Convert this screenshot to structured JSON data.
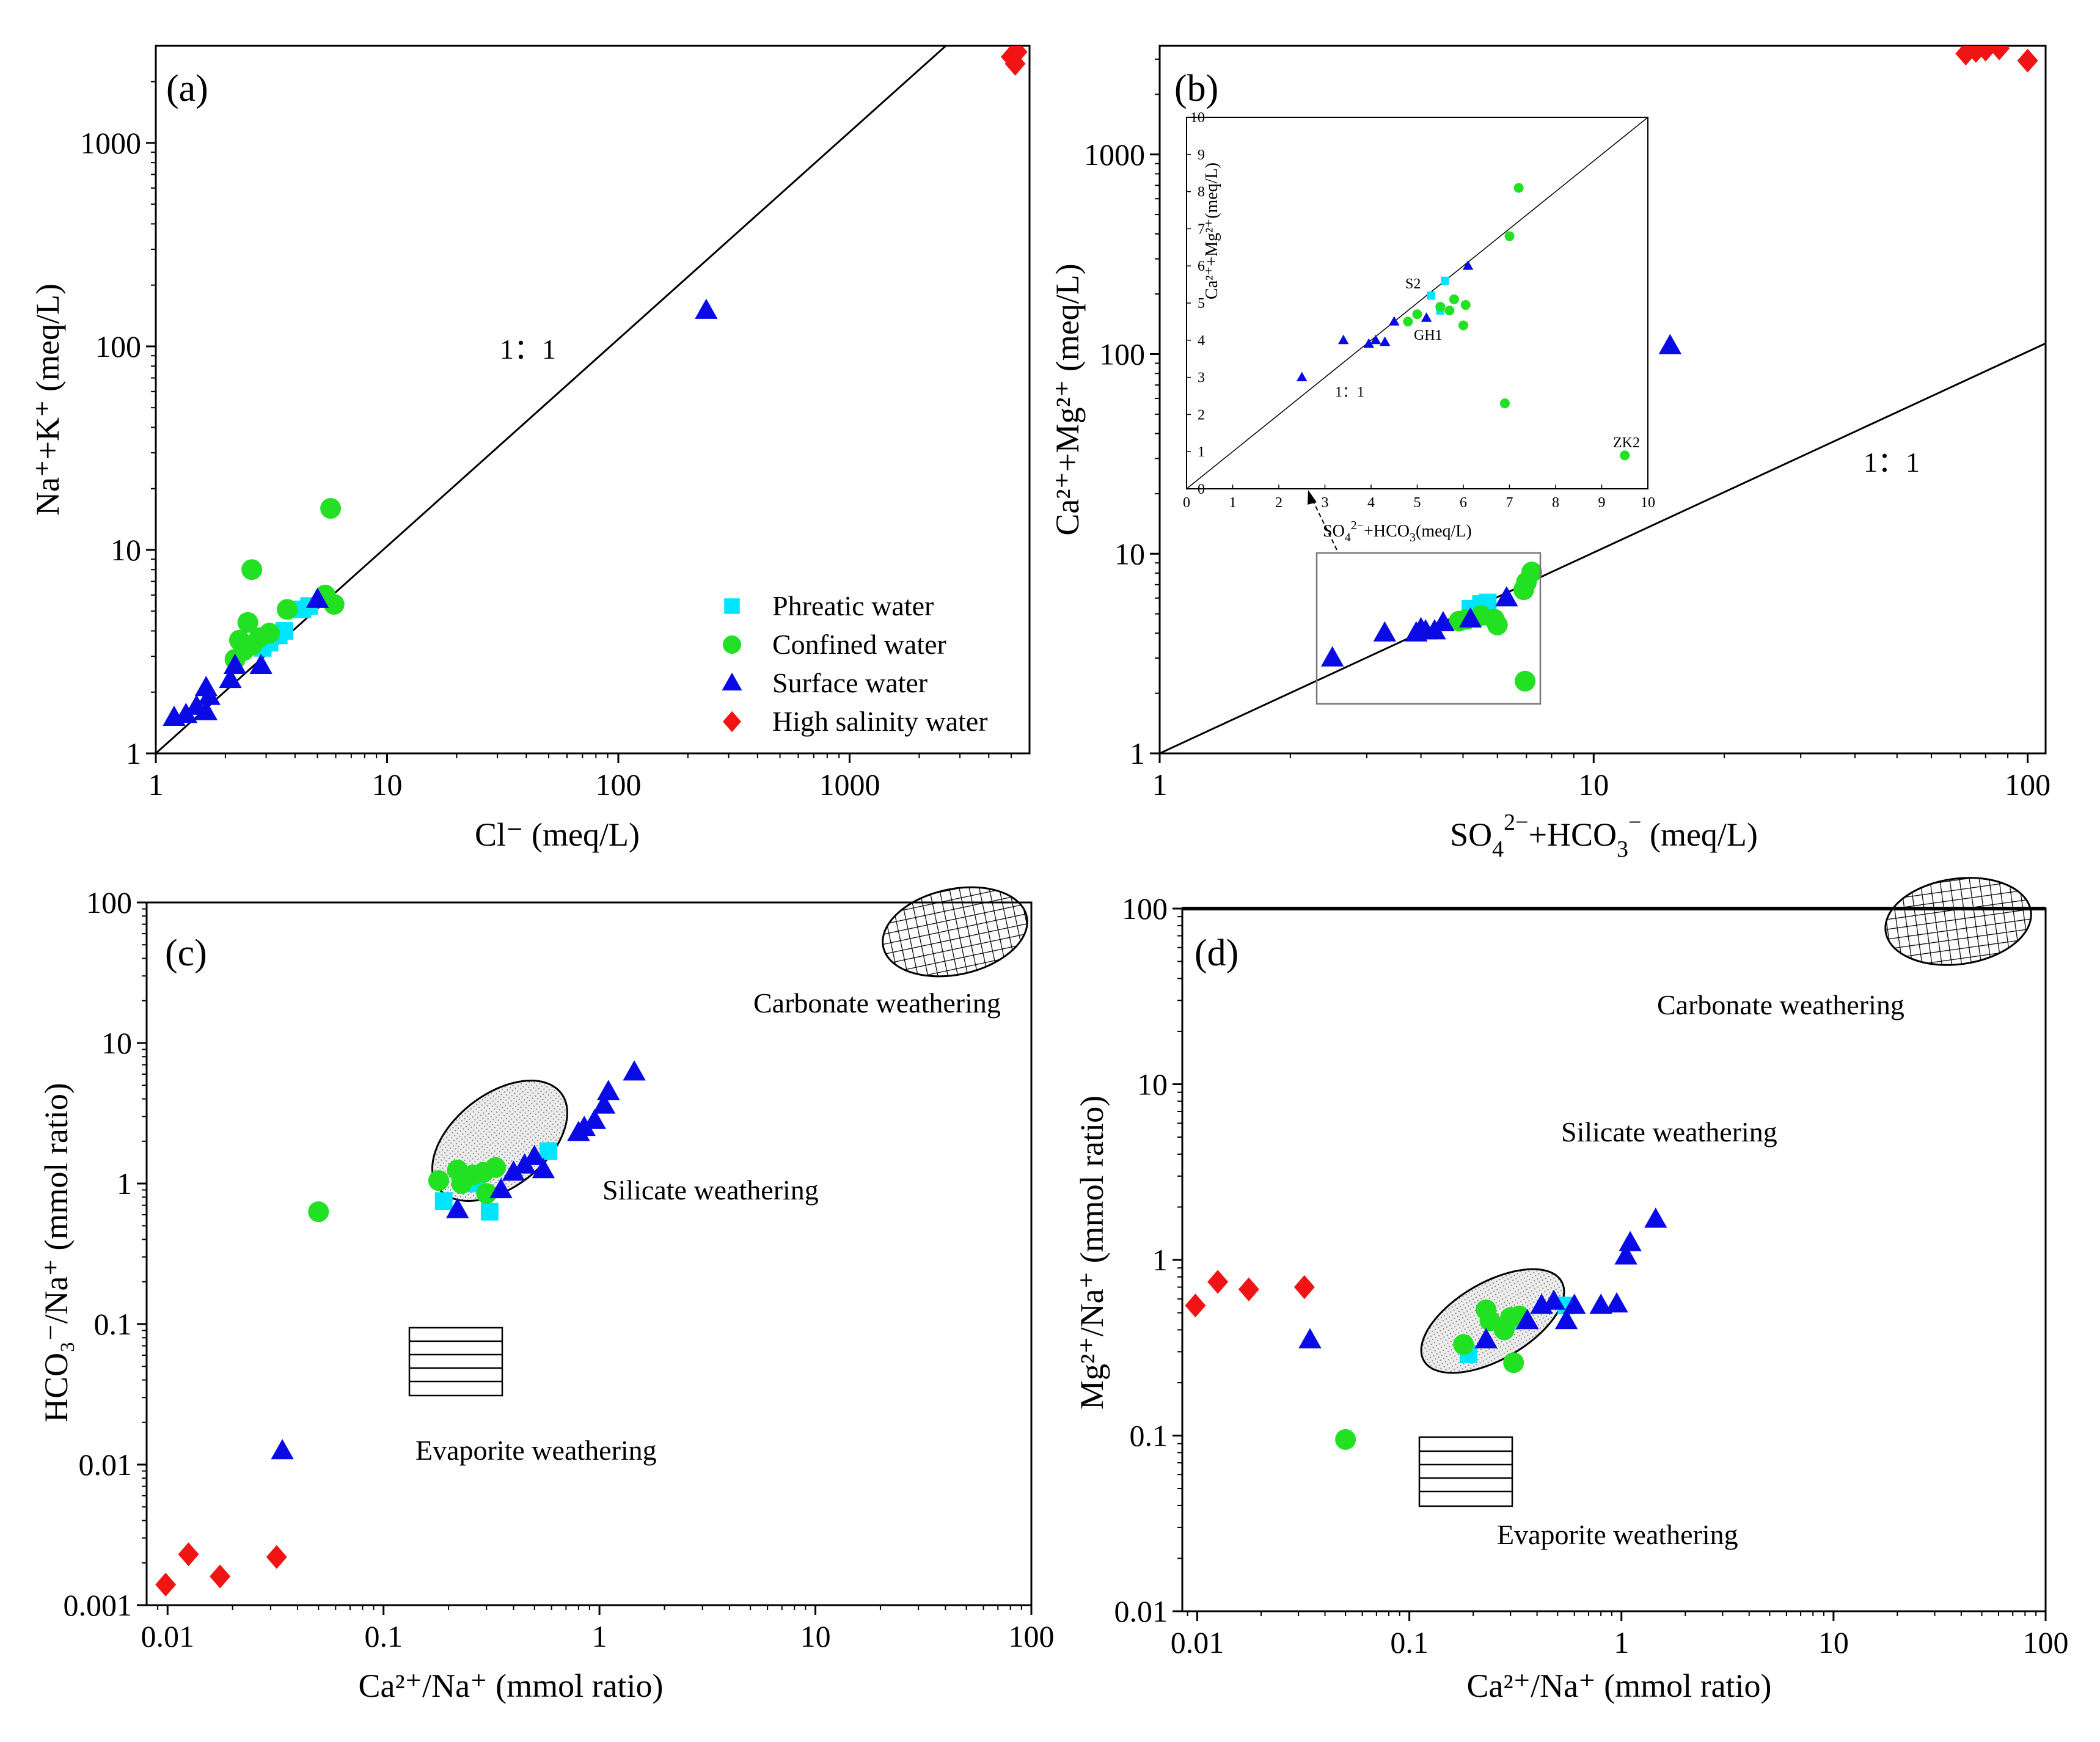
{
  "colors": {
    "phreatic": "#00e5ff",
    "confined": "#22e022",
    "surface": "#0a0ae6",
    "high_salinity": "#f01414"
  },
  "chart_data": [
    {
      "id": "a",
      "type": "scatter",
      "panel_label": "(a)",
      "title": "",
      "xlabel": "Cl⁻ (meq/L)",
      "ylabel": "Na⁺+K⁺ (meq/L)",
      "xscale": "log",
      "yscale": "log",
      "xlim": [
        1,
        6000
      ],
      "ylim": [
        1,
        3000
      ],
      "xticks": [
        1,
        10,
        100,
        1000
      ],
      "xtick_labels": [
        "1",
        "10",
        "100",
        "1000"
      ],
      "yticks": [
        1,
        10,
        100,
        1000
      ],
      "ytick_labels": [
        "1",
        "10",
        "100",
        "1000"
      ],
      "reference_line": {
        "label": "1：1",
        "slope": 1
      },
      "legend": {
        "position": "bottom-right",
        "entries": [
          {
            "key": "phreatic",
            "label": "Phreatic water",
            "marker": "square"
          },
          {
            "key": "confined",
            "label": "Confined water",
            "marker": "circle"
          },
          {
            "key": "surface",
            "label": "Surface water",
            "marker": "triangle"
          },
          {
            "key": "high_salinity",
            "label": "High salinity water",
            "marker": "diamond"
          }
        ]
      },
      "series": [
        {
          "key": "phreatic",
          "name": "Phreatic water",
          "marker": "square",
          "points": [
            [
              3.4,
              3.8
            ],
            [
              3.6,
              4.0
            ],
            [
              4.3,
              5.1
            ],
            [
              4.6,
              5.3
            ],
            [
              2.9,
              3.3
            ],
            [
              3.1,
              3.5
            ]
          ]
        },
        {
          "key": "confined",
          "name": "Confined water",
          "marker": "circle",
          "points": [
            [
              2.2,
              2.9
            ],
            [
              2.4,
              3.2
            ],
            [
              2.6,
              3.4
            ],
            [
              2.8,
              3.7
            ],
            [
              3.1,
              3.9
            ],
            [
              2.5,
              4.4
            ],
            [
              2.6,
              8.0
            ],
            [
              3.7,
              5.1
            ],
            [
              5.4,
              6.0
            ],
            [
              5.9,
              5.4
            ],
            [
              5.7,
              16.0
            ],
            [
              2.3,
              3.6
            ]
          ]
        },
        {
          "key": "surface",
          "name": "Surface water",
          "marker": "triangle",
          "points": [
            [
              1.2,
              1.5
            ],
            [
              1.35,
              1.55
            ],
            [
              1.5,
              1.7
            ],
            [
              1.65,
              1.6
            ],
            [
              1.7,
              1.9
            ],
            [
              1.65,
              2.1
            ],
            [
              2.1,
              2.3
            ],
            [
              2.2,
              2.7
            ],
            [
              2.85,
              2.7
            ],
            [
              5.0,
              5.7
            ],
            [
              240,
              150
            ]
          ]
        },
        {
          "key": "high_salinity",
          "name": "High salinity water",
          "marker": "diamond",
          "points": [
            [
              5100,
              2700
            ],
            [
              5200,
              2450
            ],
            [
              5300,
              2800
            ],
            [
              5000,
              2650
            ]
          ]
        }
      ]
    },
    {
      "id": "b",
      "type": "scatter",
      "panel_label": "(b)",
      "title": "",
      "xlabel": "SO₄²⁻+HCO₃⁻ (meq/L)",
      "ylabel": "Ca²⁺+Mg²⁺ (meq/L)",
      "xscale": "log",
      "yscale": "log",
      "xlim": [
        1,
        110
      ],
      "ylim": [
        1,
        3500
      ],
      "xticks": [
        1,
        10,
        100
      ],
      "xtick_labels": [
        "1",
        "10",
        "100"
      ],
      "yticks": [
        1,
        10,
        100,
        1000
      ],
      "ytick_labels": [
        "1",
        "10",
        "100",
        "1000"
      ],
      "reference_line": {
        "label": "1：1",
        "slope": 1
      },
      "series": [
        {
          "key": "phreatic",
          "name": "Phreatic water",
          "marker": "square",
          "points": [
            [
              5.3,
              5.2
            ],
            [
              5.5,
              5.6
            ],
            [
              5.7,
              5.7
            ],
            [
              5.2,
              5.3
            ]
          ]
        },
        {
          "key": "confined",
          "name": "Confined water",
          "marker": "circle",
          "points": [
            [
              4.9,
              4.6
            ],
            [
              5.1,
              4.7
            ],
            [
              5.5,
              4.9
            ],
            [
              5.9,
              4.7
            ],
            [
              6.0,
              4.4
            ],
            [
              7.0,
              7.2
            ],
            [
              7.2,
              8.1
            ],
            [
              6.9,
              6.6
            ],
            [
              6.95,
              2.3
            ]
          ]
        },
        {
          "key": "surface",
          "name": "Surface water",
          "marker": "triangle",
          "points": [
            [
              2.5,
              3.0
            ],
            [
              3.3,
              4.0
            ],
            [
              3.9,
              4.0
            ],
            [
              4.1,
              4.1
            ],
            [
              4.3,
              4.1
            ],
            [
              4.0,
              4.2
            ],
            [
              4.5,
              4.5
            ],
            [
              5.2,
              4.7
            ],
            [
              6.3,
              6.0
            ],
            [
              15,
              110
            ]
          ]
        },
        {
          "key": "high_salinity",
          "name": "High salinity water",
          "marker": "diamond",
          "points": [
            [
              72,
              3200
            ],
            [
              76,
              3300
            ],
            [
              80,
              3350
            ],
            [
              86,
              3400
            ],
            [
              100,
              2950
            ]
          ]
        }
      ],
      "inset": {
        "type": "scatter",
        "xlabel": "SO₄²⁻+HCO₃⁻(meq/L)",
        "ylabel": "Ca²⁺+Mg²⁺(meq/L)",
        "xlim": [
          0,
          10
        ],
        "ylim": [
          0,
          10
        ],
        "xticks": [
          0,
          1,
          2,
          3,
          4,
          5,
          6,
          7,
          8,
          9,
          10
        ],
        "xtick_labels": [
          "0",
          "1",
          "2",
          "3",
          "4",
          "5",
          "6",
          "7",
          "8",
          "9",
          "10"
        ],
        "yticks": [
          0,
          1,
          2,
          3,
          4,
          5,
          6,
          7,
          8,
          9,
          10
        ],
        "ytick_labels": [
          "0",
          "1",
          "2",
          "3",
          "4",
          "5",
          "6",
          "7",
          "8",
          "9",
          "10"
        ],
        "reference_label": "1：1",
        "annotations": [
          "S2",
          "GH1",
          "ZK2"
        ],
        "series": [
          {
            "key": "phreatic",
            "marker": "square",
            "points": [
              [
                5.3,
                5.2
              ],
              [
                5.6,
                5.6
              ],
              [
                5.5,
                4.8
              ]
            ]
          },
          {
            "key": "confined",
            "marker": "circle",
            "points": [
              [
                4.8,
                4.5
              ],
              [
                5.0,
                4.7
              ],
              [
                5.5,
                4.9
              ],
              [
                5.8,
                5.1
              ],
              [
                6.0,
                4.4
              ],
              [
                6.05,
                4.95
              ],
              [
                7.0,
                6.8
              ],
              [
                7.2,
                8.1
              ],
              [
                6.9,
                2.3
              ],
              [
                9.5,
                0.9
              ],
              [
                5.7,
                4.8
              ]
            ]
          },
          {
            "key": "surface",
            "marker": "triangle",
            "points": [
              [
                2.5,
                3.0
              ],
              [
                3.4,
                4.0
              ],
              [
                3.95,
                3.9
              ],
              [
                4.1,
                4.0
              ],
              [
                4.3,
                3.95
              ],
              [
                4.5,
                4.5
              ],
              [
                5.2,
                4.6
              ],
              [
                6.1,
                6.0
              ]
            ]
          }
        ]
      }
    },
    {
      "id": "c",
      "type": "scatter",
      "panel_label": "(c)",
      "title": "",
      "xlabel": "Ca²⁺/Na⁺ (mmol ratio)",
      "ylabel": "HCO₃⁻/Na⁺ (mmol ratio)",
      "xscale": "log",
      "yscale": "log",
      "xlim": [
        0.008,
        100
      ],
      "ylim": [
        0.001,
        100
      ],
      "xticks": [
        0.01,
        0.1,
        1,
        10,
        100
      ],
      "xtick_labels": [
        "0.01",
        "0.1",
        "1",
        "10",
        "100"
      ],
      "yticks": [
        0.001,
        0.01,
        0.1,
        1,
        10,
        100
      ],
      "ytick_labels": [
        "0.001",
        "0.01",
        "0.1",
        "1",
        "10",
        "100"
      ],
      "regions": [
        "Carbonate weathering",
        "Silicate weathering",
        "Evaporite weathering"
      ],
      "series": [
        {
          "key": "phreatic",
          "name": "Phreatic water",
          "marker": "square",
          "points": [
            [
              0.19,
              0.75
            ],
            [
              0.31,
              0.63
            ],
            [
              0.58,
              1.7
            ],
            [
              0.27,
              1.0
            ]
          ]
        },
        {
          "key": "confined",
          "name": "Confined water",
          "marker": "circle",
          "points": [
            [
              0.05,
              0.63
            ],
            [
              0.18,
              1.05
            ],
            [
              0.22,
              1.25
            ],
            [
              0.26,
              1.15
            ],
            [
              0.29,
              1.2
            ],
            [
              0.33,
              1.3
            ],
            [
              0.3,
              0.85
            ],
            [
              0.23,
              1.0
            ]
          ]
        },
        {
          "key": "surface",
          "name": "Surface water",
          "marker": "triangle",
          "points": [
            [
              0.034,
              0.0125
            ],
            [
              0.22,
              0.65
            ],
            [
              0.35,
              0.9
            ],
            [
              0.4,
              1.2
            ],
            [
              0.45,
              1.35
            ],
            [
              0.5,
              1.55
            ],
            [
              0.55,
              1.25
            ],
            [
              0.8,
              2.3
            ],
            [
              0.85,
              2.5
            ],
            [
              0.95,
              2.8
            ],
            [
              1.05,
              3.6
            ],
            [
              1.1,
              4.5
            ],
            [
              1.45,
              6.2
            ]
          ]
        },
        {
          "key": "high_salinity",
          "name": "High salinity water",
          "marker": "diamond",
          "points": [
            [
              0.0098,
              0.0014
            ],
            [
              0.0125,
              0.0023
            ],
            [
              0.0175,
              0.0016
            ],
            [
              0.032,
              0.0022
            ]
          ]
        }
      ]
    },
    {
      "id": "d",
      "type": "scatter",
      "panel_label": "(d)",
      "title": "",
      "xlabel": "Ca²⁺/Na⁺ (mmol ratio)",
      "ylabel": "Mg²⁺/Na⁺ (mmol ratio)",
      "xscale": "log",
      "yscale": "log",
      "xlim": [
        0.0085,
        100
      ],
      "ylim": [
        0.01,
        100
      ],
      "xticks": [
        0.01,
        0.1,
        1,
        10,
        100
      ],
      "xtick_labels": [
        "0.01",
        "0.1",
        "1",
        "10",
        "100"
      ],
      "yticks": [
        0.01,
        0.1,
        1,
        10,
        100
      ],
      "ytick_labels": [
        "0.01",
        "0.1",
        "1",
        "10",
        "100"
      ],
      "regions": [
        "Carbonate weathering",
        "Silicate weathering",
        "Evaporite weathering"
      ],
      "series": [
        {
          "key": "phreatic",
          "name": "Phreatic water",
          "marker": "square",
          "points": [
            [
              0.19,
              0.29
            ],
            [
              0.55,
              0.55
            ],
            [
              0.3,
              0.45
            ]
          ]
        },
        {
          "key": "confined",
          "name": "Confined water",
          "marker": "circle",
          "points": [
            [
              0.05,
              0.095
            ],
            [
              0.18,
              0.33
            ],
            [
              0.23,
              0.52
            ],
            [
              0.24,
              0.45
            ],
            [
              0.28,
              0.4
            ],
            [
              0.3,
              0.47
            ],
            [
              0.33,
              0.48
            ],
            [
              0.31,
              0.26
            ]
          ]
        },
        {
          "key": "surface",
          "name": "Surface water",
          "marker": "triangle",
          "points": [
            [
              0.034,
              0.35
            ],
            [
              0.23,
              0.35
            ],
            [
              0.36,
              0.45
            ],
            [
              0.42,
              0.55
            ],
            [
              0.48,
              0.58
            ],
            [
              0.55,
              0.45
            ],
            [
              0.6,
              0.55
            ],
            [
              0.8,
              0.55
            ],
            [
              0.95,
              0.56
            ],
            [
              1.05,
              1.05
            ],
            [
              1.1,
              1.25
            ],
            [
              1.45,
              1.7
            ]
          ]
        },
        {
          "key": "high_salinity",
          "name": "High salinity water",
          "marker": "diamond",
          "points": [
            [
              0.0098,
              0.55
            ],
            [
              0.0125,
              0.75
            ],
            [
              0.0175,
              0.68
            ],
            [
              0.032,
              0.7
            ]
          ]
        }
      ]
    }
  ]
}
